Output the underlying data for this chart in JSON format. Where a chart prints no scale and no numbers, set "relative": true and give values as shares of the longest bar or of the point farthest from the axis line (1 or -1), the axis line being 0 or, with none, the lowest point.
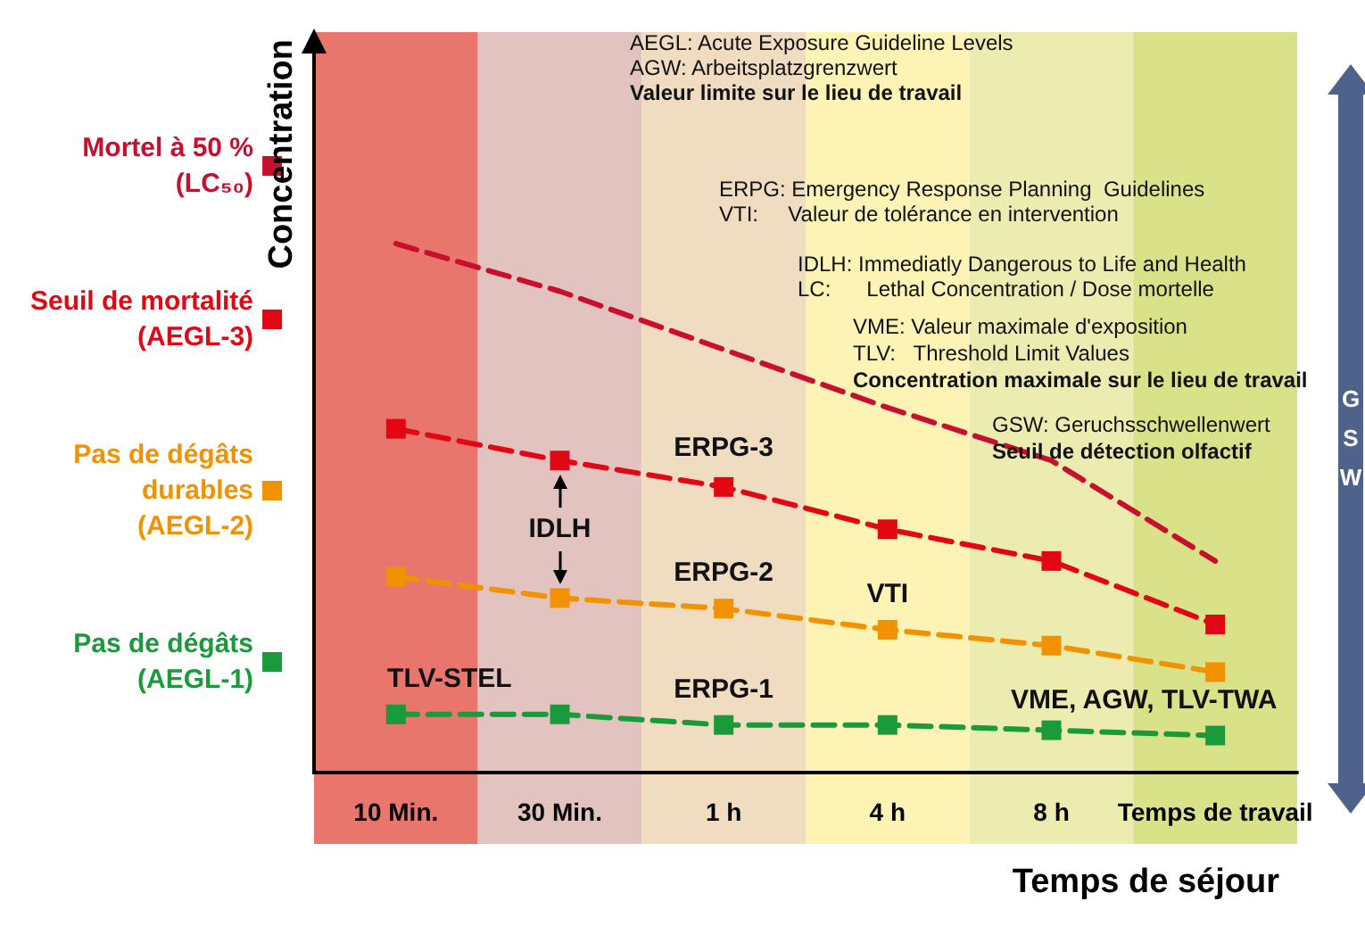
{
  "chart_data": {
    "type": "line",
    "relative": true,
    "ylabel": "Concentration",
    "xlabel": "Temps de séjour",
    "categories": [
      "10 Min.",
      "30 Min.",
      "1 h",
      "4 h",
      "8 h",
      "Temps de travail"
    ],
    "series": [
      {
        "name": "Mortel à 50 %\n(LC₅₀)",
        "color": "#c8102e",
        "marker": "none",
        "values": [
          1,
          0.91,
          0.8,
          0.69,
          0.59,
          0.4
        ]
      },
      {
        "name": "Seuil de mortalité\n(AEGL-3)",
        "color": "#e30613",
        "marker": "square",
        "values": [
          0.65,
          0.59,
          0.54,
          0.46,
          0.4,
          0.28
        ]
      },
      {
        "name": "Pas de dégâts\ndurables\n(AEGL-2)",
        "color": "#f39200",
        "marker": "square",
        "values": [
          0.37,
          0.33,
          0.31,
          0.27,
          0.24,
          0.19
        ]
      },
      {
        "name": "Pas de dégâts\n(AEGL-1)",
        "color": "#1a9a3a",
        "marker": "square",
        "values": [
          0.11,
          0.11,
          0.09,
          0.09,
          0.08,
          0.07
        ]
      }
    ],
    "line_style": "dashed",
    "legend": "left",
    "grid": false,
    "bands": [
      {
        "axis": "x",
        "from": "10 Min.",
        "to": "10 Min.",
        "color": "#e8766c"
      },
      {
        "axis": "x",
        "from": "30 Min.",
        "to": "30 Min.",
        "color": "#e2c3bf"
      },
      {
        "axis": "x",
        "from": "1 h",
        "to": "1 h",
        "color": "#f0dcc0"
      },
      {
        "axis": "x",
        "from": "4 h",
        "to": "4 h",
        "color": "#fdf3b5"
      },
      {
        "axis": "x",
        "from": "8 h",
        "to": "8 h",
        "color": "#edecb0"
      },
      {
        "axis": "x",
        "from": "Temps de travail",
        "to": "Temps de travail",
        "color": "#d9e189"
      }
    ],
    "annotations": [
      "AEGL: Acute Exposure Guideline Levels",
      "AGW: Arbeitsplatzgrenzwert",
      "Valeur limite sur le lieu de travail",
      "ERPG: Emergency Response Planning  Guidelines",
      "VTI:     Valeur de tolérance en intervention",
      "IDLH: Immediatly Dangerous to Life and Health",
      "LC:      Lethal Concentration / Dose mortelle",
      "VME: Valeur maximale d'exposition",
      "TLV:   Threshold Limit Values",
      "Concentration maximale sur le lieu de travail",
      "GSW: Geruchsschwellenwert",
      "Seuil de détection olfactif",
      "GSW",
      "ERPG-3",
      "IDLH",
      "ERPG-2",
      "VTI",
      "TLV-STEL",
      "ERPG-1",
      "VME, AGW, TLV-TWA"
    ]
  }
}
